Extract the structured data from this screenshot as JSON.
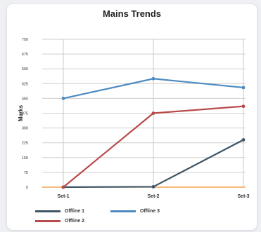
{
  "chart_data": {
    "type": "line",
    "title": "Mains Trends",
    "xlabel": "",
    "ylabel": "Marks",
    "categories": [
      "Set-1",
      "Set-2",
      "Set-3"
    ],
    "yticks": [
      0,
      75,
      150,
      225,
      300,
      375,
      450,
      525,
      600,
      675,
      750
    ],
    "ylim": [
      0,
      750
    ],
    "grid": true,
    "legend_position": "bottom",
    "series": [
      {
        "name": "Offline 1",
        "values": [
          0,
          2,
          240
        ],
        "color": "#3e5563"
      },
      {
        "name": "Offline 2",
        "values": [
          0,
          375,
          410
        ],
        "color": "#b84a4a"
      },
      {
        "name": "Offline 3",
        "values": [
          450,
          550,
          505
        ],
        "color": "#4d8ac0"
      }
    ],
    "baseline_color": "#f0922e"
  }
}
